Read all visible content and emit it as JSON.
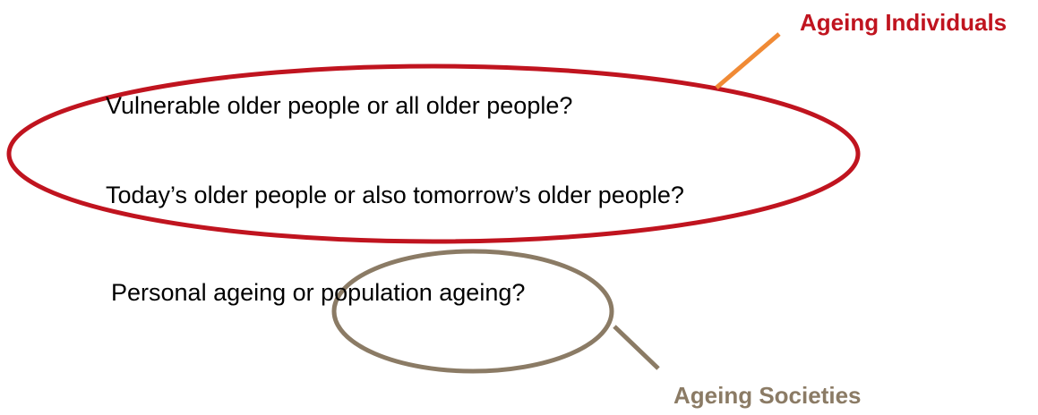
{
  "questions": [
    "Vulnerable older people or all older people?",
    "Today’s older people or also tomorrow’s older people?",
    "Personal ageing or population ageing?"
  ],
  "labels": {
    "individuals": "Ageing Individuals",
    "societies": "Ageing Societies"
  }
}
